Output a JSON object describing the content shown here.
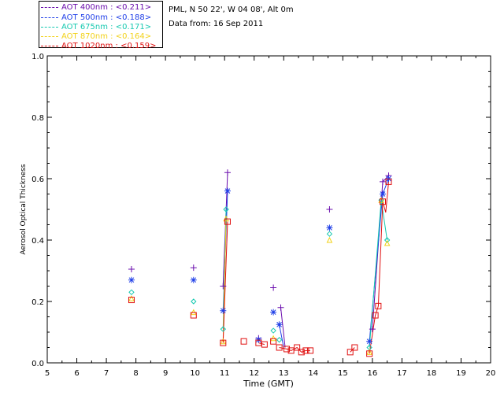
{
  "header": {
    "site": "PML, N 50 22', W 04 08', Alt 0m",
    "date": "Data from: 16 Sep 2011"
  },
  "legend": [
    {
      "label": "AOT  400nm : <0.211>",
      "color": "#6a0dad"
    },
    {
      "label": "AOT  500nm : <0.188>",
      "color": "#1f3fe8"
    },
    {
      "label": "AOT  675nm : <0.171>",
      "color": "#16c9b0"
    },
    {
      "label": "AOT  870nm : <0.164>",
      "color": "#f2d21a"
    },
    {
      "label": "AOT 1020nm : <0.159>",
      "color": "#e01010"
    }
  ],
  "chart_data": {
    "type": "scatter",
    "xlabel": "Time (GMT)",
    "ylabel": "Aerosol Optical Thickness",
    "xlim": [
      5,
      20
    ],
    "ylim": [
      0.0,
      1.0
    ],
    "xticks": [
      "5",
      "6",
      "7",
      "8",
      "9",
      "10",
      "11",
      "12",
      "13",
      "14",
      "15",
      "16",
      "17",
      "18",
      "19",
      "20"
    ],
    "yticks": [
      "0.0",
      "0.2",
      "0.4",
      "0.6",
      "0.8",
      "1.0"
    ],
    "series": [
      {
        "name": "AOT  400nm : <0.211>",
        "marker": "plus",
        "color": "#6a0dad",
        "points": [
          [
            7.85,
            0.305
          ],
          [
            9.95,
            0.31
          ],
          [
            10.95,
            0.25
          ],
          [
            11.1,
            0.62
          ],
          [
            12.15,
            0.08
          ],
          [
            12.65,
            0.245
          ],
          [
            12.9,
            0.18
          ],
          [
            14.55,
            0.5
          ],
          [
            16.0,
            0.11
          ],
          [
            16.35,
            0.59
          ],
          [
            16.55,
            0.61
          ]
        ],
        "line_segments": [
          [
            [
              10.95,
              0.25
            ],
            [
              11.1,
              0.62
            ]
          ],
          [
            [
              12.9,
              0.18
            ],
            [
              13.05,
              0.05
            ]
          ],
          [
            [
              16.0,
              0.11
            ],
            [
              16.35,
              0.59
            ],
            [
              16.55,
              0.61
            ]
          ]
        ]
      },
      {
        "name": "AOT  500nm : <0.188>",
        "marker": "star",
        "color": "#1f3fe8",
        "points": [
          [
            7.85,
            0.27
          ],
          [
            9.95,
            0.27
          ],
          [
            10.95,
            0.17
          ],
          [
            11.1,
            0.56
          ],
          [
            12.15,
            0.075
          ],
          [
            12.65,
            0.165
          ],
          [
            12.85,
            0.125
          ],
          [
            14.55,
            0.44
          ],
          [
            15.9,
            0.07
          ],
          [
            16.35,
            0.55
          ],
          [
            16.55,
            0.6
          ]
        ],
        "line_segments": [
          [
            [
              10.95,
              0.17
            ],
            [
              11.1,
              0.56
            ]
          ],
          [
            [
              12.85,
              0.125
            ],
            [
              13.0,
              0.05
            ]
          ],
          [
            [
              15.9,
              0.07
            ],
            [
              16.35,
              0.55
            ],
            [
              16.55,
              0.6
            ]
          ]
        ]
      },
      {
        "name": "AOT  675nm : <0.171>",
        "marker": "diamond",
        "color": "#16c9b0",
        "points": [
          [
            7.85,
            0.23
          ],
          [
            9.95,
            0.2
          ],
          [
            10.95,
            0.11
          ],
          [
            11.05,
            0.5
          ],
          [
            12.65,
            0.105
          ],
          [
            12.85,
            0.075
          ],
          [
            14.55,
            0.42
          ],
          [
            15.9,
            0.05
          ],
          [
            16.3,
            0.53
          ],
          [
            16.5,
            0.4
          ]
        ],
        "line_segments": [
          [
            [
              10.95,
              0.11
            ],
            [
              11.05,
              0.5
            ]
          ],
          [
            [
              15.9,
              0.05
            ],
            [
              16.3,
              0.53
            ],
            [
              16.5,
              0.4
            ]
          ]
        ]
      },
      {
        "name": "AOT  870nm : <0.164>",
        "marker": "triangle",
        "color": "#f2d21a",
        "points": [
          [
            7.85,
            0.21
          ],
          [
            9.95,
            0.165
          ],
          [
            10.95,
            0.07
          ],
          [
            11.05,
            0.47
          ],
          [
            12.65,
            0.08
          ],
          [
            14.55,
            0.4
          ],
          [
            15.9,
            0.035
          ],
          [
            16.3,
            0.53
          ],
          [
            16.5,
            0.39
          ]
        ],
        "line_segments": [
          [
            [
              10.95,
              0.07
            ],
            [
              11.05,
              0.47
            ]
          ]
        ]
      },
      {
        "name": "AOT 1020nm : <0.159>",
        "marker": "square",
        "color": "#e01010",
        "points": [
          [
            7.85,
            0.205
          ],
          [
            9.95,
            0.155
          ],
          [
            10.95,
            0.065
          ],
          [
            11.1,
            0.46
          ],
          [
            11.65,
            0.07
          ],
          [
            12.15,
            0.065
          ],
          [
            12.35,
            0.06
          ],
          [
            12.65,
            0.07
          ],
          [
            12.85,
            0.05
          ],
          [
            13.1,
            0.045
          ],
          [
            13.25,
            0.04
          ],
          [
            13.45,
            0.05
          ],
          [
            13.6,
            0.035
          ],
          [
            13.75,
            0.04
          ],
          [
            13.9,
            0.04
          ],
          [
            15.25,
            0.035
          ],
          [
            15.4,
            0.05
          ],
          [
            15.9,
            0.03
          ],
          [
            16.1,
            0.155
          ],
          [
            16.2,
            0.185
          ],
          [
            16.35,
            0.525
          ],
          [
            16.55,
            0.59
          ]
        ],
        "line_segments": [
          [
            [
              10.95,
              0.065
            ],
            [
              11.1,
              0.46
            ]
          ],
          [
            [
              12.15,
              0.065
            ],
            [
              12.35,
              0.06
            ]
          ],
          [
            [
              12.85,
              0.05
            ],
            [
              13.1,
              0.045
            ],
            [
              13.25,
              0.04
            ],
            [
              13.45,
              0.05
            ],
            [
              13.6,
              0.035
            ],
            [
              13.75,
              0.04
            ],
            [
              13.9,
              0.04
            ]
          ],
          [
            [
              15.25,
              0.035
            ],
            [
              15.4,
              0.05
            ]
          ],
          [
            [
              15.9,
              0.03
            ],
            [
              16.1,
              0.155
            ],
            [
              16.2,
              0.185
            ],
            [
              16.35,
              0.525
            ],
            [
              16.45,
              0.49
            ],
            [
              16.55,
              0.59
            ]
          ]
        ]
      }
    ]
  }
}
